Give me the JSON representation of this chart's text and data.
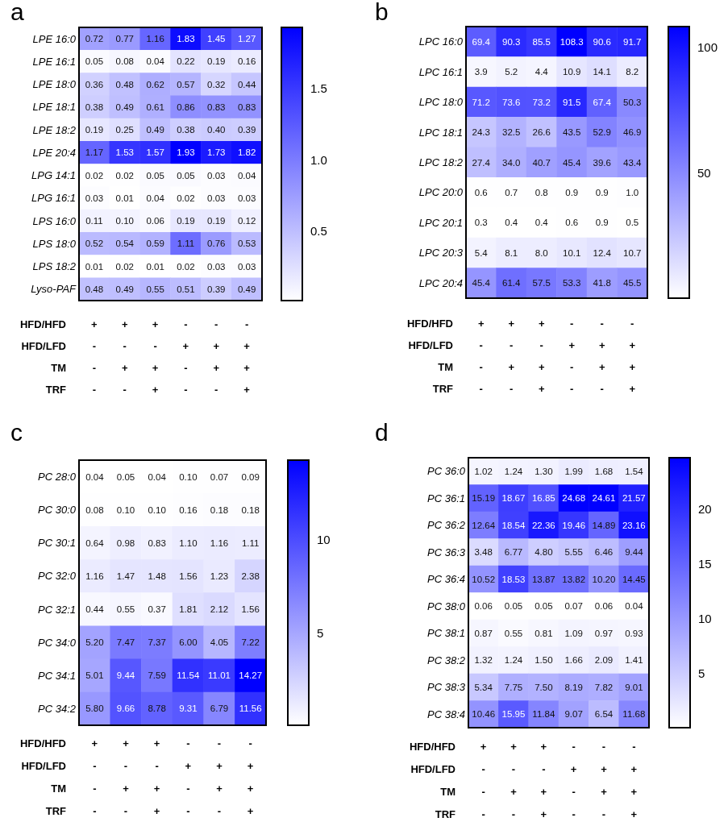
{
  "chart_data": [
    {
      "type": "heatmap",
      "title": "a",
      "categories": [
        "+\n-\n-\n-",
        "+\n-\n+\n-",
        "+\n-\n+\n+",
        "-\n+\n-\n-",
        "-\n+\n+\n-",
        "-\n+\n+\n+"
      ],
      "y_categories": [
        "LPE 16:0",
        "LPE 16:1",
        "LPE 18:0",
        "LPE 18:1",
        "LPE 18:2",
        "LPE 20:4",
        "LPG 14:1",
        "LPG 16:1",
        "LPS 16:0",
        "LPS 18:0",
        "LPS 18:2",
        "Lyso-PAF"
      ],
      "cells": [
        [
          0.72,
          0.77,
          1.16,
          1.83,
          1.45,
          1.27
        ],
        [
          0.05,
          0.08,
          0.04,
          0.22,
          0.19,
          0.16
        ],
        [
          0.36,
          0.48,
          0.62,
          0.57,
          0.32,
          0.44
        ],
        [
          0.38,
          0.49,
          0.61,
          0.86,
          0.83,
          0.83
        ],
        [
          0.19,
          0.25,
          0.49,
          0.38,
          0.4,
          0.39
        ],
        [
          1.17,
          1.53,
          1.57,
          1.93,
          1.73,
          1.82
        ],
        [
          0.02,
          0.02,
          0.05,
          0.05,
          0.03,
          0.04
        ],
        [
          0.03,
          0.01,
          0.04,
          0.02,
          0.03,
          0.03
        ],
        [
          0.11,
          0.1,
          0.06,
          0.19,
          0.19,
          0.12
        ],
        [
          0.52,
          0.54,
          0.59,
          1.11,
          0.76,
          0.53
        ],
        [
          0.01,
          0.02,
          0.01,
          0.02,
          0.03,
          0.03
        ],
        [
          0.48,
          0.49,
          0.55,
          0.51,
          0.39,
          0.49
        ]
      ],
      "cell_labels": [
        [
          "0.72",
          "0.77",
          "1.16",
          "1.83",
          "1.45",
          "1.27"
        ],
        [
          "0.05",
          "0.08",
          "0.04",
          "0.22",
          "0.19",
          "0.16"
        ],
        [
          "0.36",
          "0.48",
          "0.62",
          "0.57",
          "0.32",
          "0.44"
        ],
        [
          "0.38",
          "0.49",
          "0.61",
          "0.86",
          "0.83",
          "0.83"
        ],
        [
          "0.19",
          "0.25",
          "0.49",
          "0.38",
          "0.40",
          "0.39"
        ],
        [
          "1.17",
          "1.53",
          "1.57",
          "1.93",
          "1.73",
          "1.82"
        ],
        [
          "0.02",
          "0.02",
          "0.05",
          "0.05",
          "0.03",
          "0.04"
        ],
        [
          "0.03",
          "0.01",
          "0.04",
          "0.02",
          "0.03",
          "0.03"
        ],
        [
          "0.11",
          "0.10",
          "0.06",
          "0.19",
          "0.19",
          "0.12"
        ],
        [
          "0.52",
          "0.54",
          "0.59",
          "1.11",
          "0.76",
          "0.53"
        ],
        [
          "0.01",
          "0.02",
          "0.01",
          "0.02",
          "0.03",
          "0.03"
        ],
        [
          "0.48",
          "0.49",
          "0.55",
          "0.51",
          "0.39",
          "0.49"
        ]
      ],
      "clim": [
        0.01,
        1.93
      ],
      "cticks": [
        0.5,
        {
          "value": 1.0,
          "label": "1.0"
        },
        1.5
      ],
      "annotations": [
        "HFD/HFD",
        "HFD/LFD",
        "TM",
        "TRF"
      ],
      "data_labels": true
    },
    {
      "type": "heatmap",
      "title": "b",
      "categories": [
        "+\n-\n-\n-",
        "+\n-\n+\n-",
        "+\n-\n+\n+",
        "-\n+\n-\n-",
        "-\n+\n+\n-",
        "-\n+\n+\n+"
      ],
      "y_categories": [
        "LPC 16:0",
        "LPC 16:1",
        "LPC 18:0",
        "LPC 18:1",
        "LPC 18:2",
        "LPC 20:0",
        "LPC 20:1",
        "LPC 20:3",
        "LPC 20:4"
      ],
      "cells": [
        [
          69.4,
          90.3,
          85.5,
          108.3,
          90.6,
          91.7
        ],
        [
          3.9,
          5.2,
          4.4,
          10.9,
          14.1,
          8.2
        ],
        [
          71.2,
          73.6,
          73.2,
          91.5,
          67.4,
          50.3
        ],
        [
          24.3,
          32.5,
          26.6,
          43.5,
          52.9,
          46.9
        ],
        [
          27.4,
          34.0,
          40.7,
          45.4,
          39.6,
          43.4
        ],
        [
          0.6,
          0.7,
          0.8,
          0.9,
          0.9,
          1.0
        ],
        [
          0.3,
          0.4,
          0.4,
          0.6,
          0.9,
          0.5
        ],
        [
          5.4,
          8.1,
          8.0,
          10.1,
          12.4,
          10.7
        ],
        [
          45.4,
          61.4,
          57.5,
          53.3,
          41.8,
          45.5
        ]
      ],
      "cell_labels": [
        [
          "69.4",
          "90.3",
          "85.5",
          "108.3",
          "90.6",
          "91.7"
        ],
        [
          "3.9",
          "5.2",
          "4.4",
          "10.9",
          "14.1",
          "8.2"
        ],
        [
          "71.2",
          "73.6",
          "73.2",
          "91.5",
          "67.4",
          "50.3"
        ],
        [
          "24.3",
          "32.5",
          "26.6",
          "43.5",
          "52.9",
          "46.9"
        ],
        [
          "27.4",
          "34.0",
          "40.7",
          "45.4",
          "39.6",
          "43.4"
        ],
        [
          "0.6",
          "0.7",
          "0.8",
          "0.9",
          "0.9",
          "1.0"
        ],
        [
          "0.3",
          "0.4",
          "0.4",
          "0.6",
          "0.9",
          "0.5"
        ],
        [
          "5.4",
          "8.1",
          "8.0",
          "10.1",
          "12.4",
          "10.7"
        ],
        [
          "45.4",
          "61.4",
          "57.5",
          "53.3",
          "41.8",
          "45.5"
        ]
      ],
      "clim": [
        0.3,
        108.3
      ],
      "cticks": [
        50,
        100
      ],
      "annotations": [
        "HFD/HFD",
        "HFD/LFD",
        "TM",
        "TRF"
      ],
      "data_labels": true
    },
    {
      "type": "heatmap",
      "title": "c",
      "categories": [
        "+\n-\n-\n-",
        "+\n-\n+\n-",
        "+\n-\n+\n+",
        "-\n+\n-\n-",
        "-\n+\n+\n-",
        "-\n+\n+\n+"
      ],
      "y_categories": [
        "PC 28:0",
        "PC 30:0",
        "PC 30:1",
        "PC 32:0",
        "PC 32:1",
        "PC 34:0",
        "PC 34:1",
        "PC 34:2"
      ],
      "cells": [
        [
          0.04,
          0.05,
          0.04,
          0.1,
          0.07,
          0.09
        ],
        [
          0.08,
          0.1,
          0.1,
          0.16,
          0.18,
          0.18
        ],
        [
          0.64,
          0.98,
          0.83,
          1.1,
          1.16,
          1.11
        ],
        [
          1.16,
          1.47,
          1.48,
          1.56,
          1.23,
          2.38
        ],
        [
          0.44,
          0.55,
          0.37,
          1.81,
          2.12,
          1.56
        ],
        [
          5.2,
          7.47,
          7.37,
          6.0,
          4.05,
          7.22
        ],
        [
          5.01,
          9.44,
          7.59,
          11.54,
          11.01,
          14.27
        ],
        [
          5.8,
          9.66,
          8.78,
          9.31,
          6.79,
          11.56
        ]
      ],
      "cell_labels": [
        [
          "0.04",
          "0.05",
          "0.04",
          "0.10",
          "0.07",
          "0.09"
        ],
        [
          "0.08",
          "0.10",
          "0.10",
          "0.16",
          "0.18",
          "0.18"
        ],
        [
          "0.64",
          "0.98",
          "0.83",
          "1.10",
          "1.16",
          "1.11"
        ],
        [
          "1.16",
          "1.47",
          "1.48",
          "1.56",
          "1.23",
          "2.38"
        ],
        [
          "0.44",
          "0.55",
          "0.37",
          "1.81",
          "2.12",
          "1.56"
        ],
        [
          "5.20",
          "7.47",
          "7.37",
          "6.00",
          "4.05",
          "7.22"
        ],
        [
          "5.01",
          "9.44",
          "7.59",
          "11.54",
          "11.01",
          "14.27"
        ],
        [
          "5.80",
          "9.66",
          "8.78",
          "9.31",
          "6.79",
          "11.56"
        ]
      ],
      "clim": [
        0.04,
        14.27
      ],
      "cticks": [
        5,
        10
      ],
      "annotations": [
        "HFD/HFD",
        "HFD/LFD",
        "TM",
        "TRF"
      ],
      "data_labels": true
    },
    {
      "type": "heatmap",
      "title": "d",
      "categories": [
        "+\n-\n-\n-",
        "+\n-\n+\n-",
        "+\n-\n+\n+",
        "-\n+\n-\n-",
        "-\n+\n+\n-",
        "-\n+\n+\n+"
      ],
      "y_categories": [
        "PC 36:0",
        "PC 36:1",
        "PC 36:2",
        "PC 36:3",
        "PC 36:4",
        "PC 38:0",
        "PC 38:1",
        "PC 38:2",
        "PC 38:3",
        "PC 38:4"
      ],
      "cells": [
        [
          1.02,
          1.24,
          1.3,
          1.99,
          1.68,
          1.54
        ],
        [
          15.19,
          18.67,
          16.85,
          24.68,
          24.61,
          21.57
        ],
        [
          12.64,
          18.54,
          22.36,
          19.46,
          14.89,
          23.16
        ],
        [
          3.48,
          6.77,
          4.8,
          5.55,
          6.46,
          9.44
        ],
        [
          10.52,
          18.53,
          13.87,
          13.82,
          10.2,
          14.45
        ],
        [
          0.06,
          0.05,
          0.05,
          0.07,
          0.06,
          0.04
        ],
        [
          0.87,
          0.55,
          0.81,
          1.09,
          0.97,
          0.93
        ],
        [
          1.32,
          1.24,
          1.5,
          1.66,
          2.09,
          1.41
        ],
        [
          5.34,
          7.75,
          7.5,
          8.19,
          7.82,
          9.01
        ],
        [
          10.46,
          15.95,
          11.84,
          9.07,
          6.54,
          11.68
        ]
      ],
      "cell_labels": [
        [
          "1.02",
          "1.24",
          "1.30",
          "1.99",
          "1.68",
          "1.54"
        ],
        [
          "15.19",
          "18.67",
          "16.85",
          "24.68",
          "24.61",
          "21.57"
        ],
        [
          "12.64",
          "18.54",
          "22.36",
          "19.46",
          "14.89",
          "23.16"
        ],
        [
          "3.48",
          "6.77",
          "4.80",
          "5.55",
          "6.46",
          "9.44"
        ],
        [
          "10.52",
          "18.53",
          "13.87",
          "13.82",
          "10.20",
          "14.45"
        ],
        [
          "0.06",
          "0.05",
          "0.05",
          "0.07",
          "0.06",
          "0.04"
        ],
        [
          "0.87",
          "0.55",
          "0.81",
          "1.09",
          "0.97",
          "0.93"
        ],
        [
          "1.32",
          "1.24",
          "1.50",
          "1.66",
          "2.09",
          "1.41"
        ],
        [
          "5.34",
          "7.75",
          "7.50",
          "8.19",
          "7.82",
          "9.01"
        ],
        [
          "10.46",
          "15.95",
          "11.84",
          "9.07",
          "6.54",
          "11.68"
        ]
      ],
      "clim": [
        0.04,
        24.68
      ],
      "cticks": [
        5,
        10,
        15,
        20
      ],
      "annotations": [
        "HFD/HFD",
        "HFD/LFD",
        "TM",
        "TRF"
      ],
      "data_labels": true
    }
  ]
}
